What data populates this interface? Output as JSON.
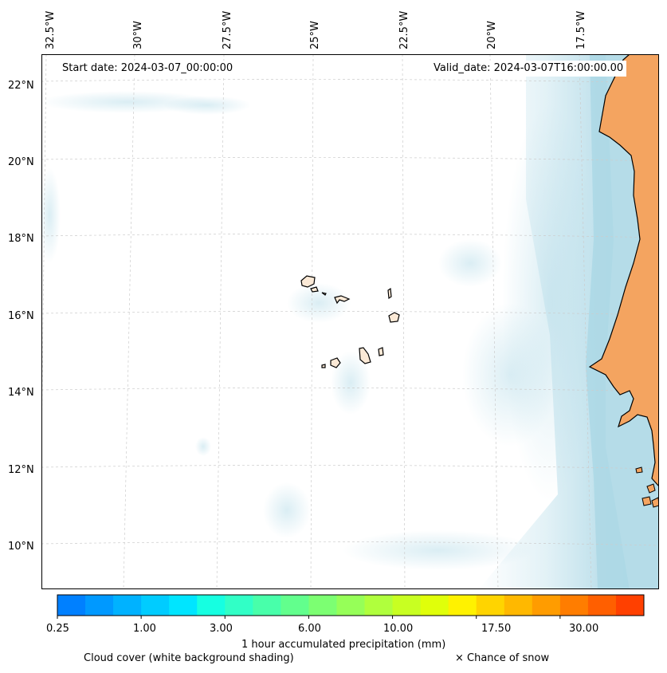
{
  "header": {
    "start_date": "Start date: 2024-03-07_00:00:00",
    "valid_date": "Valid_date: 2024-03-07T16:00:00.00"
  },
  "axes": {
    "longitude_labels": [
      "32.5°W",
      "30°W",
      "27.5°W",
      "25°W",
      "22.5°W",
      "20°W",
      "17.5°W"
    ],
    "latitude_labels": [
      "22°N",
      "20°N",
      "18°N",
      "16°N",
      "14°N",
      "12°N",
      "10°N"
    ]
  },
  "colorbar": {
    "colors": [
      "#0080ff",
      "#0099ff",
      "#00b2ff",
      "#00ccff",
      "#00e5ff",
      "#16ffe1",
      "#31ffc6",
      "#48ffaa",
      "#62ff8d",
      "#7cff72",
      "#96ff58",
      "#b0ff3d",
      "#c8ff22",
      "#e0ff0a",
      "#fff200",
      "#ffd400",
      "#ffb800",
      "#ff9c00",
      "#ff7d00",
      "#ff5f00",
      "#ff4000"
    ],
    "tick_labels": [
      "0.25",
      "1.00",
      "3.00",
      "6.00",
      "10.00",
      "17.50",
      "30.00"
    ],
    "title": "1 hour accumulated precipitation (mm)"
  },
  "footer": {
    "cloud_note": "Cloud cover (white background shading)",
    "snow_note": "× Chance of snow"
  },
  "colors": {
    "land": "#f4a460",
    "coastal_cloud": "#add8e6",
    "light_cloud": "#e4f3f8",
    "island_fill": "#fbe9d6"
  }
}
